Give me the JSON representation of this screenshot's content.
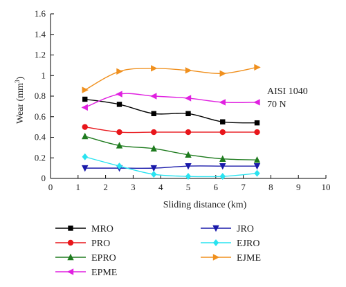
{
  "chart_data": {
    "type": "line",
    "xlabel": "Sliding distance (km)",
    "ylabel_main": "Wear (mm",
    "ylabel_sup": "3",
    "ylabel_close": ")",
    "xlim": [
      0,
      10
    ],
    "ylim": [
      0,
      1.6
    ],
    "x_ticks": [
      0,
      1,
      2,
      3,
      4,
      5,
      6,
      7,
      8,
      9,
      10
    ],
    "y_ticks": [
      0,
      0.2,
      0.4,
      0.6,
      0.8,
      1,
      1.2,
      1.4,
      1.6
    ],
    "grid": false,
    "legend_placement": "bottom",
    "annotation": {
      "line1": "AISI 1040",
      "line2": "70 N",
      "color": "#1f1f7a"
    },
    "x": [
      1.25,
      2.5,
      3.75,
      5,
      6.25,
      7.5
    ],
    "series": [
      {
        "name": "MRO",
        "marker": "square",
        "color": "#000000",
        "values": [
          0.77,
          0.72,
          0.63,
          0.63,
          0.55,
          0.54
        ]
      },
      {
        "name": "PRO",
        "marker": "circle",
        "color": "#e8161b",
        "values": [
          0.5,
          0.45,
          0.45,
          0.45,
          0.45,
          0.45
        ]
      },
      {
        "name": "EPRO",
        "marker": "triangle-up",
        "color": "#1e7b1e",
        "values": [
          0.41,
          0.32,
          0.29,
          0.23,
          0.19,
          0.18
        ]
      },
      {
        "name": "EPME",
        "marker": "triangle-left",
        "color": "#e020e0",
        "values": [
          0.69,
          0.82,
          0.8,
          0.78,
          0.74,
          0.74
        ]
      },
      {
        "name": "JRO",
        "marker": "triangle-down",
        "color": "#1a1aaa",
        "values": [
          0.1,
          0.1,
          0.1,
          0.12,
          0.12,
          0.12
        ]
      },
      {
        "name": "EJRO",
        "marker": "diamond",
        "color": "#29e3f0",
        "values": [
          0.21,
          0.12,
          0.04,
          0.02,
          0.02,
          0.05
        ]
      },
      {
        "name": "EJME",
        "marker": "triangle-right",
        "color": "#f0901e",
        "values": [
          0.86,
          1.04,
          1.07,
          1.05,
          1.02,
          1.08
        ]
      }
    ]
  }
}
